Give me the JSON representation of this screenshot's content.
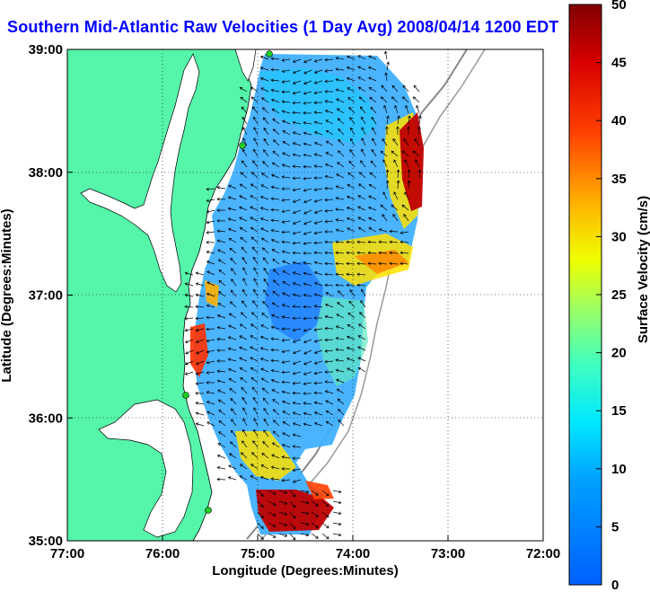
{
  "title": "Southern Mid-Atlantic Raw Velocities (1 Day Avg) 2008/04/14 1200 EDT",
  "x_axis": {
    "label": "Longitude (Degrees:Minutes)",
    "ticks": [
      "77:00",
      "76:00",
      "75:00",
      "74:00",
      "73:00",
      "72:00"
    ]
  },
  "y_axis": {
    "label": "Latitude (Degrees:Minutes)",
    "ticks": [
      "39:00",
      "38:00",
      "37:00",
      "36:00",
      "35:00"
    ]
  },
  "colorbar": {
    "label": "Surface Velocity (cm/s)",
    "min": 0,
    "max": 50,
    "ticks": [
      "50",
      "45",
      "40",
      "35",
      "30",
      "25",
      "20",
      "15",
      "10",
      "5",
      "0"
    ],
    "colors": [
      "#0000ff",
      "#0080ff",
      "#00ffff",
      "#80ff80",
      "#ffff00",
      "#ff8000",
      "#ff0000",
      "#800000"
    ]
  },
  "colors": {
    "land": "#55f5aa",
    "water_bg": "#ffffff",
    "title": "#0000ff"
  }
}
